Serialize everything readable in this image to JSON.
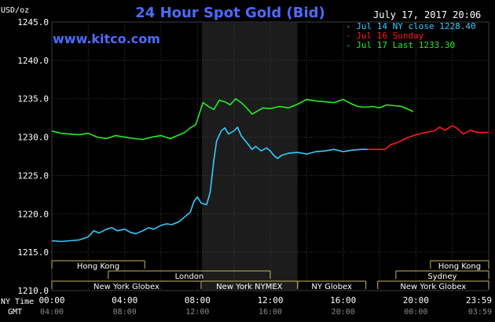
{
  "title": "24 Hour Spot Gold (Bid)",
  "source_url": "www.kitco.com",
  "date_text": "July 17, 2017 20:06",
  "chart_data": {
    "type": "line",
    "title": "24 Hour Spot Gold (Bid)",
    "y_unit": "USD/oz",
    "ylim": [
      1210,
      1245
    ],
    "y_ticks": [
      "1210.0",
      "1215.0",
      "1220.0",
      "1225.0",
      "1230.0",
      "1235.0",
      "1240.0",
      "1245.0"
    ],
    "x_axis_primary_name": "NY Time",
    "x_axis_secondary_name": "GMT",
    "xlim": [
      0,
      24
    ],
    "x_ticks": [
      {
        "x": 0,
        "ny": "00:00",
        "gmt": "04:00"
      },
      {
        "x": 4,
        "ny": "04:00",
        "gmt": "08:00"
      },
      {
        "x": 8,
        "ny": "08:00",
        "gmt": "12:00"
      },
      {
        "x": 12,
        "ny": "12:00",
        "gmt": "16:00"
      },
      {
        "x": 16,
        "ny": "16:00",
        "gmt": "20:00"
      },
      {
        "x": 20,
        "ny": "20:00",
        "gmt": "00:00"
      },
      {
        "x": 23.98,
        "ny": "23:59",
        "gmt": "03:59"
      }
    ],
    "grid": true,
    "legend_position": "top-right",
    "highlight_range": [
      8.25,
      13.5
    ],
    "series": [
      {
        "name": "Jul 14 NY close 1228.40",
        "color": "#33ccff",
        "points": [
          [
            0,
            1216.5
          ],
          [
            0.5,
            1216.4
          ],
          [
            1,
            1216.5
          ],
          [
            1.5,
            1216.6
          ],
          [
            2,
            1217.0
          ],
          [
            2.3,
            1217.8
          ],
          [
            2.6,
            1217.5
          ],
          [
            3,
            1218.0
          ],
          [
            3.3,
            1218.2
          ],
          [
            3.6,
            1217.8
          ],
          [
            4,
            1218.0
          ],
          [
            4.3,
            1217.6
          ],
          [
            4.6,
            1217.4
          ],
          [
            5,
            1217.8
          ],
          [
            5.3,
            1218.2
          ],
          [
            5.6,
            1218.0
          ],
          [
            6,
            1218.5
          ],
          [
            6.3,
            1218.7
          ],
          [
            6.6,
            1218.6
          ],
          [
            7,
            1219.0
          ],
          [
            7.3,
            1219.6
          ],
          [
            7.6,
            1220.2
          ],
          [
            7.8,
            1221.6
          ],
          [
            8.0,
            1222.2
          ],
          [
            8.2,
            1221.4
          ],
          [
            8.5,
            1221.2
          ],
          [
            8.7,
            1222.8
          ],
          [
            8.9,
            1227.0
          ],
          [
            9.05,
            1229.5
          ],
          [
            9.3,
            1230.8
          ],
          [
            9.5,
            1231.2
          ],
          [
            9.7,
            1230.4
          ],
          [
            10.0,
            1230.8
          ],
          [
            10.2,
            1231.3
          ],
          [
            10.4,
            1230.2
          ],
          [
            10.6,
            1229.6
          ],
          [
            10.8,
            1229.0
          ],
          [
            11.0,
            1228.4
          ],
          [
            11.2,
            1228.8
          ],
          [
            11.5,
            1228.2
          ],
          [
            11.8,
            1228.6
          ],
          [
            12.0,
            1228.2
          ],
          [
            12.2,
            1227.6
          ],
          [
            12.4,
            1227.2
          ],
          [
            12.6,
            1227.6
          ],
          [
            13.0,
            1227.9
          ],
          [
            13.5,
            1228.0
          ],
          [
            14.0,
            1227.8
          ],
          [
            14.5,
            1228.1
          ],
          [
            15.0,
            1228.2
          ],
          [
            15.5,
            1228.4
          ],
          [
            16.0,
            1228.1
          ],
          [
            16.5,
            1228.3
          ],
          [
            17.0,
            1228.4
          ],
          [
            17.35,
            1228.4
          ]
        ]
      },
      {
        "name": "Jul 16 Sunday",
        "color": "#ff1a1a",
        "points": [
          [
            17.35,
            1228.4
          ],
          [
            18.3,
            1228.4
          ],
          [
            18.6,
            1229.0
          ],
          [
            19.0,
            1229.3
          ],
          [
            19.5,
            1229.9
          ],
          [
            20.0,
            1230.3
          ],
          [
            20.5,
            1230.6
          ],
          [
            21.0,
            1230.8
          ],
          [
            21.3,
            1231.3
          ],
          [
            21.6,
            1230.9
          ],
          [
            22.0,
            1231.5
          ],
          [
            22.3,
            1231.1
          ],
          [
            22.6,
            1230.4
          ],
          [
            23.0,
            1230.9
          ],
          [
            23.4,
            1230.6
          ],
          [
            23.98,
            1230.6
          ]
        ]
      },
      {
        "name": "Jul 17 Last 1233.30",
        "color": "#22ee22",
        "points": [
          [
            0,
            1230.8
          ],
          [
            0.5,
            1230.5
          ],
          [
            1,
            1230.4
          ],
          [
            1.5,
            1230.3
          ],
          [
            2,
            1230.5
          ],
          [
            2.5,
            1230.0
          ],
          [
            3,
            1229.8
          ],
          [
            3.5,
            1230.2
          ],
          [
            4,
            1230.0
          ],
          [
            4.5,
            1229.8
          ],
          [
            5,
            1229.7
          ],
          [
            5.5,
            1230.0
          ],
          [
            6,
            1230.2
          ],
          [
            6.5,
            1229.8
          ],
          [
            7,
            1230.3
          ],
          [
            7.3,
            1230.6
          ],
          [
            7.6,
            1231.2
          ],
          [
            7.9,
            1231.6
          ],
          [
            8.1,
            1233.0
          ],
          [
            8.3,
            1234.5
          ],
          [
            8.6,
            1234.0
          ],
          [
            8.9,
            1233.6
          ],
          [
            9.2,
            1234.8
          ],
          [
            9.5,
            1234.6
          ],
          [
            9.8,
            1234.2
          ],
          [
            10.1,
            1235.0
          ],
          [
            10.4,
            1234.5
          ],
          [
            10.7,
            1233.8
          ],
          [
            11.0,
            1233.0
          ],
          [
            11.3,
            1233.4
          ],
          [
            11.6,
            1233.8
          ],
          [
            12.0,
            1233.7
          ],
          [
            12.5,
            1234.0
          ],
          [
            13.0,
            1233.8
          ],
          [
            13.5,
            1234.3
          ],
          [
            14.0,
            1234.9
          ],
          [
            14.5,
            1234.7
          ],
          [
            15.0,
            1234.6
          ],
          [
            15.5,
            1234.5
          ],
          [
            16.0,
            1234.9
          ],
          [
            16.4,
            1234.4
          ],
          [
            16.8,
            1234.0
          ],
          [
            17.2,
            1233.9
          ],
          [
            17.6,
            1234.0
          ],
          [
            18.0,
            1233.8
          ],
          [
            18.4,
            1234.2
          ],
          [
            18.8,
            1234.1
          ],
          [
            19.2,
            1234.0
          ],
          [
            19.6,
            1233.6
          ],
          [
            19.85,
            1233.3
          ]
        ]
      }
    ],
    "sessions": [
      {
        "label": "Hong Kong",
        "start": 0,
        "end": 5.1,
        "row": 1
      },
      {
        "label": "London",
        "start": 3.1,
        "end": 12.0,
        "row": 2
      },
      {
        "label": "New York Globex",
        "start": 0,
        "end": 8.2,
        "row": 3
      },
      {
        "label": "New York NYMEX",
        "start": 8.2,
        "end": 13.5,
        "row": 3
      },
      {
        "label": "NY Globex",
        "start": 13.5,
        "end": 17.25,
        "row": 3
      },
      {
        "label": "Hong Kong",
        "start": 20.8,
        "end": 24,
        "row": 1
      },
      {
        "label": "Sydney",
        "start": 18.9,
        "end": 24,
        "row": 2
      },
      {
        "label": "New York Globex",
        "start": 17.9,
        "end": 24,
        "row": 3
      }
    ]
  }
}
